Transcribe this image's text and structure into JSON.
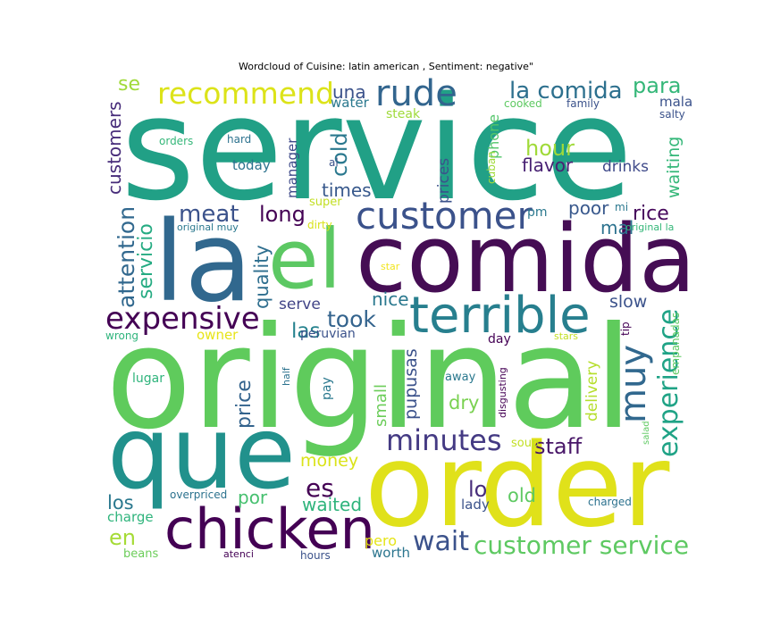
{
  "chart_data": {
    "type": "wordcloud",
    "title": "Wordcloud of Cuisine: latin american , Sentiment: negative\"",
    "colormap": "viridis",
    "words": [
      {
        "text": "service",
        "weight": 1.0,
        "color": "#21a086"
      },
      {
        "text": "original",
        "weight": 0.92,
        "color": "#5fcb5c"
      },
      {
        "text": "order",
        "weight": 0.8,
        "color": "#e0e11a"
      },
      {
        "text": "comida",
        "weight": 0.74,
        "color": "#450d54"
      },
      {
        "text": "la",
        "weight": 0.78,
        "color": "#31688e"
      },
      {
        "text": "el",
        "weight": 0.62,
        "color": "#5cc863"
      },
      {
        "text": "que",
        "weight": 0.7,
        "color": "#21918c"
      },
      {
        "text": "chicken",
        "weight": 0.4,
        "color": "#440154"
      },
      {
        "text": "terrible",
        "weight": 0.38,
        "color": "#277f8e"
      },
      {
        "text": "customer",
        "weight": 0.28,
        "color": "#3b528b"
      },
      {
        "text": "rude",
        "weight": 0.26,
        "color": "#32658e"
      },
      {
        "text": "recommend",
        "weight": 0.22,
        "color": "#dce319"
      },
      {
        "text": "expensive",
        "weight": 0.22,
        "color": "#440154"
      },
      {
        "text": "muy",
        "weight": 0.24,
        "color": "#31688e"
      },
      {
        "text": "minutes",
        "weight": 0.22,
        "color": "#443a83"
      },
      {
        "text": "experience",
        "weight": 0.2,
        "color": "#20a386"
      },
      {
        "text": "customer service",
        "weight": 0.18,
        "color": "#5ec962"
      },
      {
        "text": "wait",
        "weight": 0.18,
        "color": "#3b528b"
      },
      {
        "text": "la comida",
        "weight": 0.16,
        "color": "#2d708e"
      },
      {
        "text": "para",
        "weight": 0.14,
        "color": "#35b779"
      },
      {
        "text": "hour",
        "weight": 0.14,
        "color": "#a0da39"
      },
      {
        "text": "flavor",
        "weight": 0.12,
        "color": "#482173"
      },
      {
        "text": "drinks",
        "weight": 0.1,
        "color": "#3e4989"
      },
      {
        "text": "waiting",
        "weight": 0.11,
        "color": "#35b779"
      },
      {
        "text": "poor",
        "weight": 0.12,
        "color": "#38588c"
      },
      {
        "text": "rice",
        "weight": 0.14,
        "color": "#46085c"
      },
      {
        "text": "mal",
        "weight": 0.12,
        "color": "#2c728e"
      },
      {
        "text": "slow",
        "weight": 0.12,
        "color": "#3b528b"
      },
      {
        "text": "meat",
        "weight": 0.16,
        "color": "#3b528b"
      },
      {
        "text": "long",
        "weight": 0.14,
        "color": "#440154"
      },
      {
        "text": "attention",
        "weight": 0.15,
        "color": "#31688e"
      },
      {
        "text": "servicio",
        "weight": 0.14,
        "color": "#25ab82"
      },
      {
        "text": "quality",
        "weight": 0.13,
        "color": "#2e6e8e"
      },
      {
        "text": "customers",
        "weight": 0.12,
        "color": "#472c7a"
      },
      {
        "text": "cold",
        "weight": 0.13,
        "color": "#2a788e"
      },
      {
        "text": "times",
        "weight": 0.12,
        "color": "#38598c"
      },
      {
        "text": "took",
        "weight": 0.15,
        "color": "#33638d"
      },
      {
        "text": "las",
        "weight": 0.14,
        "color": "#26828e"
      },
      {
        "text": "nice",
        "weight": 0.12,
        "color": "#2a788e"
      },
      {
        "text": "serve",
        "weight": 0.1,
        "color": "#414487"
      },
      {
        "text": "price",
        "weight": 0.13,
        "color": "#33638d"
      },
      {
        "text": "pupusas",
        "weight": 0.11,
        "color": "#3b528b"
      },
      {
        "text": "small",
        "weight": 0.1,
        "color": "#6ccd5a"
      },
      {
        "text": "dry",
        "weight": 0.13,
        "color": "#7ad151"
      },
      {
        "text": "delivery",
        "weight": 0.1,
        "color": "#b5de2b"
      },
      {
        "text": "staff",
        "weight": 0.14,
        "color": "#481668"
      },
      {
        "text": "es",
        "weight": 0.16,
        "color": "#440154"
      },
      {
        "text": "lo",
        "weight": 0.15,
        "color": "#472d7b"
      },
      {
        "text": "old",
        "weight": 0.12,
        "color": "#5ec962"
      },
      {
        "text": "waited",
        "weight": 0.12,
        "color": "#2fb47c"
      },
      {
        "text": "money",
        "weight": 0.12,
        "color": "#dae319"
      },
      {
        "text": "por",
        "weight": 0.12,
        "color": "#46c06f"
      },
      {
        "text": "los",
        "weight": 0.12,
        "color": "#2a788e"
      },
      {
        "text": "en",
        "weight": 0.14,
        "color": "#a5db36"
      },
      {
        "text": "pero",
        "weight": 0.1,
        "color": "#e5e419"
      },
      {
        "text": "worth",
        "weight": 0.09,
        "color": "#2b758e"
      },
      {
        "text": "una",
        "weight": 0.12,
        "color": "#3b528b"
      },
      {
        "text": "water",
        "weight": 0.1,
        "color": "#2a788e"
      },
      {
        "text": "steak",
        "weight": 0.09,
        "color": "#9fda3a"
      },
      {
        "text": "cooked",
        "weight": 0.07,
        "color": "#5ec962"
      },
      {
        "text": "family",
        "weight": 0.07,
        "color": "#3b528b"
      },
      {
        "text": "mala",
        "weight": 0.09,
        "color": "#3b528b"
      },
      {
        "text": "salty",
        "weight": 0.07,
        "color": "#3b528b"
      },
      {
        "text": "phone",
        "weight": 0.1,
        "color": "#52c569"
      },
      {
        "text": "cuban",
        "weight": 0.07,
        "color": "#a0da39"
      },
      {
        "text": "prices",
        "weight": 0.1,
        "color": "#3b528b"
      },
      {
        "text": "manager",
        "weight": 0.09,
        "color": "#3e4a89"
      },
      {
        "text": "today",
        "weight": 0.09,
        "color": "#2c728e"
      },
      {
        "text": "al",
        "weight": 0.07,
        "color": "#3b528b"
      },
      {
        "text": "hard",
        "weight": 0.07,
        "color": "#2c728e"
      },
      {
        "text": "orders",
        "weight": 0.07,
        "color": "#35b779"
      },
      {
        "text": "super",
        "weight": 0.08,
        "color": "#c2df23"
      },
      {
        "text": "dirty",
        "weight": 0.07,
        "color": "#d8e219"
      },
      {
        "text": "pm",
        "weight": 0.08,
        "color": "#2a788e"
      },
      {
        "text": "mi",
        "weight": 0.07,
        "color": "#2a788e"
      },
      {
        "text": "original la",
        "weight": 0.07,
        "color": "#35b779"
      },
      {
        "text": "original muy",
        "weight": 0.07,
        "color": "#2a788e"
      },
      {
        "text": "star",
        "weight": 0.07,
        "color": "#f1e51d"
      },
      {
        "text": "wrong",
        "weight": 0.07,
        "color": "#2fb47c"
      },
      {
        "text": "owner",
        "weight": 0.09,
        "color": "#e7e419"
      },
      {
        "text": "peruvian",
        "weight": 0.08,
        "color": "#3b528b"
      },
      {
        "text": "day",
        "weight": 0.08,
        "color": "#440154"
      },
      {
        "text": "stars",
        "weight": 0.07,
        "color": "#c2df23"
      },
      {
        "text": "tip",
        "weight": 0.07,
        "color": "#440154"
      },
      {
        "text": "empanadas",
        "weight": 0.07,
        "color": "#5ec962"
      },
      {
        "text": "lugar",
        "weight": 0.08,
        "color": "#2fb47c"
      },
      {
        "text": "half",
        "weight": 0.07,
        "color": "#2c728e"
      },
      {
        "text": "pay",
        "weight": 0.08,
        "color": "#2a788e"
      },
      {
        "text": "away",
        "weight": 0.07,
        "color": "#2a788e"
      },
      {
        "text": "disgusting",
        "weight": 0.07,
        "color": "#440154"
      },
      {
        "text": "salad",
        "weight": 0.06,
        "color": "#5ec962"
      },
      {
        "text": "soup",
        "weight": 0.07,
        "color": "#c2df23"
      },
      {
        "text": "overpriced",
        "weight": 0.07,
        "color": "#2c728e"
      },
      {
        "text": "charge",
        "weight": 0.08,
        "color": "#2fb47c"
      },
      {
        "text": "charged",
        "weight": 0.07,
        "color": "#2c728e"
      },
      {
        "text": "lady",
        "weight": 0.08,
        "color": "#3b528b"
      },
      {
        "text": "beans",
        "weight": 0.07,
        "color": "#6ccd5a"
      },
      {
        "text": "atenci",
        "weight": 0.06,
        "color": "#440154"
      },
      {
        "text": "hours",
        "weight": 0.07,
        "color": "#3b528b"
      },
      {
        "text": "se",
        "weight": 0.11,
        "color": "#a0da39"
      }
    ]
  }
}
